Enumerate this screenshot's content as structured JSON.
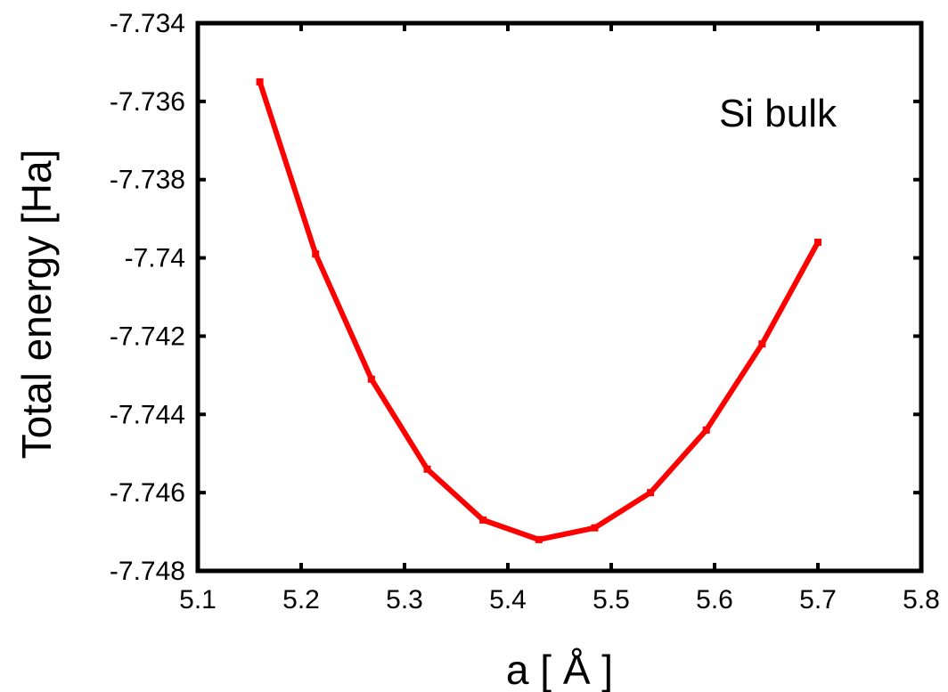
{
  "chart_data": {
    "type": "line",
    "title": "",
    "xlabel": "a [ Å ]",
    "ylabel": "Total energy [Ha]",
    "annotation": "Si bulk",
    "xlim": [
      5.1,
      5.8
    ],
    "ylim": [
      -7.748,
      -7.734
    ],
    "x_ticks": [
      5.1,
      5.2,
      5.3,
      5.4,
      5.5,
      5.6,
      5.7,
      5.8
    ],
    "x_tick_labels": [
      "5.1",
      "5.2",
      "5.3",
      "5.4",
      "5.5",
      "5.6",
      "5.7",
      "5.8"
    ],
    "y_ticks": [
      -7.748,
      -7.746,
      -7.744,
      -7.742,
      -7.74,
      -7.738,
      -7.736,
      -7.734
    ],
    "y_tick_labels": [
      "-7.748",
      "-7.746",
      "-7.744",
      "-7.742",
      "-7.74",
      "-7.738",
      "-7.736",
      "-7.734"
    ],
    "grid": false,
    "series": [
      {
        "color": "#ff0000",
        "x": [
          5.16,
          5.214,
          5.268,
          5.322,
          5.376,
          5.43,
          5.484,
          5.538,
          5.592,
          5.646,
          5.7
        ],
        "y": [
          -7.7355,
          -7.7399,
          -7.7431,
          -7.7454,
          -7.7467,
          -7.7472,
          -7.7469,
          -7.746,
          -7.7444,
          -7.7422,
          -7.7396
        ]
      }
    ]
  }
}
